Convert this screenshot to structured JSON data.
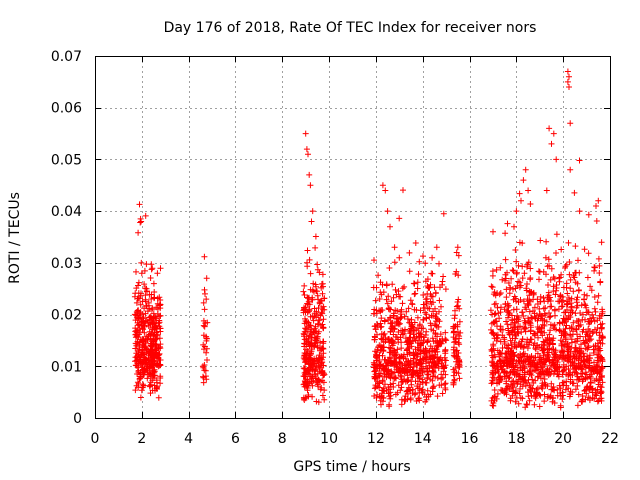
{
  "chart_data": {
    "type": "scatter",
    "title": "Day 176 of 2018, Rate Of TEC Index for receiver nors",
    "xlabel": "GPS time / hours",
    "ylabel": "ROTI / TECUs",
    "xlim": [
      0,
      22
    ],
    "ylim": [
      0,
      0.07
    ],
    "grid": true,
    "marker": "+",
    "color": "#ff0000",
    "x_ticks": [
      0,
      2,
      4,
      6,
      8,
      10,
      12,
      14,
      16,
      18,
      20,
      22
    ],
    "x_tick_labels": [
      "0",
      "2",
      "4",
      "6",
      "8",
      "10",
      "12",
      "14",
      "16",
      "18",
      "20",
      "22"
    ],
    "y_ticks": [
      0,
      0.01,
      0.02,
      0.03,
      0.04,
      0.05,
      0.06,
      0.07
    ],
    "y_tick_labels": [
      "0",
      "0.01",
      "0.02",
      "0.03",
      "0.04",
      "0.05",
      "0.06",
      "0.07"
    ],
    "clusters": [
      {
        "x_range": [
          1.7,
          2.8
        ],
        "count": 420,
        "y_min": 0.003,
        "y_typ": 0.013,
        "y_spread": 0.006,
        "outliers": [
          [
            1.9,
            0.0413
          ],
          [
            1.95,
            0.0385
          ],
          [
            1.97,
            0.038
          ],
          [
            1.93,
            0.0378
          ],
          [
            1.98,
            0.03
          ],
          [
            2.0,
            0.028
          ],
          [
            2.2,
            0.025
          ]
        ]
      },
      {
        "x_range": [
          4.6,
          4.8
        ],
        "count": 30,
        "y_min": 0.004,
        "y_typ": 0.011,
        "y_spread": 0.006,
        "outliers": [
          [
            4.7,
            0.024
          ],
          [
            4.75,
            0.023
          ],
          [
            4.68,
            0.021
          ]
        ]
      },
      {
        "x_range": [
          8.9,
          9.8
        ],
        "count": 320,
        "y_min": 0.003,
        "y_typ": 0.012,
        "y_spread": 0.007,
        "outliers": [
          [
            9.0,
            0.055
          ],
          [
            9.05,
            0.052
          ],
          [
            9.1,
            0.051
          ],
          [
            9.15,
            0.047
          ],
          [
            9.2,
            0.045
          ],
          [
            9.3,
            0.04
          ],
          [
            9.25,
            0.038
          ]
        ]
      },
      {
        "x_range": [
          11.9,
          13.9
        ],
        "count": 520,
        "y_min": 0.002,
        "y_typ": 0.011,
        "y_spread": 0.007,
        "outliers": [
          [
            12.3,
            0.045
          ],
          [
            12.4,
            0.044
          ],
          [
            12.5,
            0.04
          ],
          [
            12.6,
            0.037
          ],
          [
            12.8,
            0.033
          ],
          [
            13.0,
            0.031
          ]
        ]
      },
      {
        "x_range": [
          13.9,
          15.0
        ],
        "count": 240,
        "y_min": 0.003,
        "y_typ": 0.012,
        "y_spread": 0.007,
        "outliers": [
          [
            14.9,
            0.0395
          ],
          [
            14.6,
            0.033
          ],
          [
            14.4,
            0.031
          ]
        ]
      },
      {
        "x_range": [
          15.3,
          15.6
        ],
        "count": 70,
        "y_min": 0.006,
        "y_typ": 0.013,
        "y_spread": 0.006,
        "outliers": [
          [
            15.5,
            0.033
          ],
          [
            15.45,
            0.032
          ]
        ]
      },
      {
        "x_range": [
          16.9,
          19.0
        ],
        "count": 560,
        "y_min": 0.002,
        "y_typ": 0.012,
        "y_spread": 0.008,
        "outliers": [
          [
            18.4,
            0.048
          ],
          [
            18.3,
            0.046
          ],
          [
            18.5,
            0.044
          ],
          [
            18.2,
            0.042
          ],
          [
            18.0,
            0.04
          ],
          [
            17.9,
            0.037
          ],
          [
            17.0,
            0.036
          ]
        ]
      },
      {
        "x_range": [
          19.0,
          21.7
        ],
        "count": 700,
        "y_min": 0.002,
        "y_typ": 0.012,
        "y_spread": 0.008,
        "outliers": [
          [
            20.2,
            0.067
          ],
          [
            20.25,
            0.066
          ],
          [
            20.2,
            0.065
          ],
          [
            20.25,
            0.064
          ],
          [
            20.3,
            0.057
          ],
          [
            19.4,
            0.056
          ],
          [
            19.6,
            0.055
          ],
          [
            19.5,
            0.053
          ],
          [
            19.7,
            0.05
          ],
          [
            19.3,
            0.044
          ],
          [
            20.3,
            0.048
          ],
          [
            21.5,
            0.042
          ],
          [
            21.4,
            0.041
          ],
          [
            20.7,
            0.04
          ]
        ]
      }
    ]
  }
}
